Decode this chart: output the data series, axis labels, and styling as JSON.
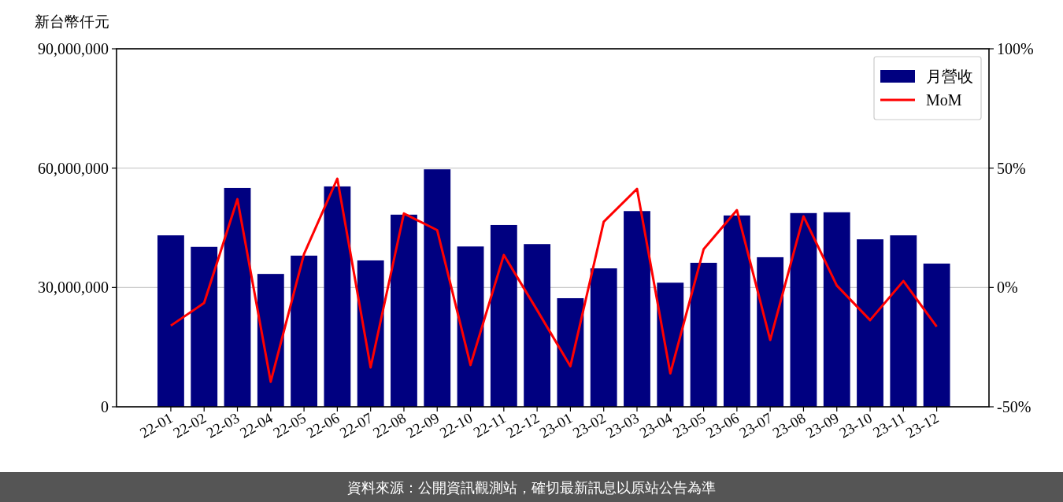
{
  "chart_data": {
    "type": "bar",
    "ylabel": "新台幣仟元",
    "categories": [
      "22-01",
      "22-02",
      "22-03",
      "22-04",
      "22-05",
      "22-06",
      "22-07",
      "22-08",
      "22-09",
      "22-10",
      "22-11",
      "22-12",
      "23-01",
      "23-02",
      "23-03",
      "23-04",
      "23-05",
      "23-06",
      "23-07",
      "23-08",
      "23-09",
      "23-10",
      "23-11",
      "23-12"
    ],
    "series": [
      {
        "name": "月營收",
        "color": "#000080",
        "values": [
          43100000,
          40200000,
          55000000,
          33400000,
          38000000,
          55400000,
          36800000,
          48300000,
          59700000,
          40300000,
          45700000,
          40900000,
          27300000,
          34800000,
          49200000,
          31200000,
          36200000,
          48100000,
          37600000,
          48700000,
          48900000,
          42100000,
          43100000,
          36000000
        ]
      },
      {
        "name": "MoM",
        "type": "line",
        "axis": "y2",
        "color": "#ff0000",
        "values": [
          -16,
          -6.5,
          37,
          -39.5,
          14,
          45.6,
          -33.5,
          31,
          24,
          -32.5,
          13.6,
          -9.5,
          -33,
          27.5,
          41.3,
          -36,
          16,
          32.4,
          -22,
          29.8,
          0.8,
          -13.7,
          2.7,
          -16.4
        ]
      }
    ],
    "ylim": [
      0,
      90000000
    ],
    "yticks": [
      {
        "value": 0,
        "label": "0"
      },
      {
        "value": 30000000,
        "label": "30,000,000"
      },
      {
        "value": 60000000,
        "label": "60,000,000"
      },
      {
        "value": 90000000,
        "label": "90,000,000"
      }
    ],
    "y2lim": [
      -50,
      100
    ],
    "y2ticks": [
      {
        "value": -50,
        "label": "-50%"
      },
      {
        "value": 0,
        "label": "0%"
      },
      {
        "value": 50,
        "label": "50%"
      },
      {
        "value": 100,
        "label": "100%"
      }
    ],
    "grid": "y",
    "legend": "top right",
    "annotations": [
      "資料來源：公開資訊觀測站，確切最新訊息以原站公告為準"
    ]
  }
}
